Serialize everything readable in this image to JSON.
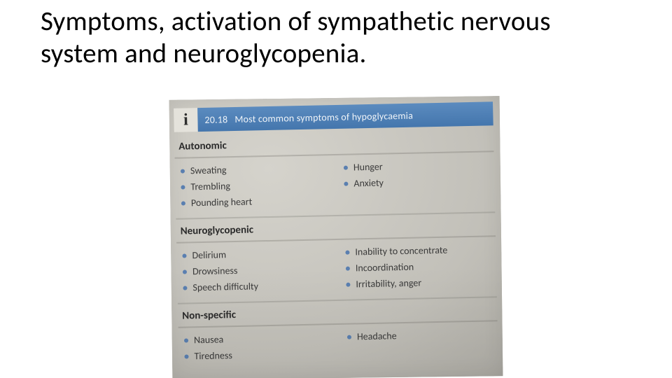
{
  "title": "Symptoms, activation of sympathetic nervous system and neuroglycopenia.",
  "box": {
    "icon_letter": "i",
    "number": "20.18",
    "heading": "Most common symptoms of hypoglycaemia",
    "header_bg": "#4f7fb5",
    "header_text_color": "#eef3f8",
    "bullet_color": "#5a7fb0",
    "paper_bg": "#c2c0b9",
    "sections": [
      {
        "name": "Autonomic",
        "left": [
          "Sweating",
          "Trembling",
          "Pounding heart"
        ],
        "right": [
          "Hunger",
          "Anxiety"
        ]
      },
      {
        "name": "Neuroglycopenic",
        "left": [
          "Delirium",
          "Drowsiness",
          "Speech difficulty"
        ],
        "right": [
          "Inability to concentrate",
          "Incoordination",
          "Irritability, anger"
        ]
      },
      {
        "name": "Non-specific",
        "left": [
          "Nausea",
          "Tiredness"
        ],
        "right": [
          "Headache"
        ]
      }
    ]
  }
}
